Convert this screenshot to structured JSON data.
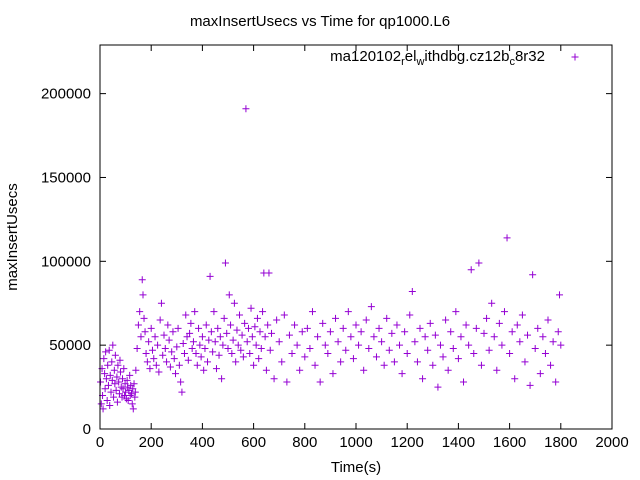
{
  "chart_data": {
    "type": "scatter",
    "title": "maxInsertUsecs vs Time for qp1000.L6",
    "xlabel": "Time(s)",
    "ylabel": "maxInsertUsecs",
    "xlim": [
      0,
      2000
    ],
    "ylim": [
      0,
      229000
    ],
    "xticks": [
      0,
      200,
      400,
      600,
      800,
      1000,
      1200,
      1400,
      1600,
      1800,
      2000
    ],
    "yticks": [
      0,
      50000,
      100000,
      150000,
      200000
    ],
    "grid": false,
    "legend": {
      "position": "top-right",
      "entries": [
        {
          "label": "ma120102_rel_withdbg.cz12b_c8r32",
          "label_parts": [
            "ma120102",
            "r",
            "el",
            "w",
            "ithdbg.cz12b",
            "c",
            "8r32"
          ],
          "marker": "+",
          "color": "#9400d3"
        }
      ]
    },
    "series": [
      {
        "name": "ma120102_rel_withdbg.cz12b_c8r32",
        "color": "#9400d3",
        "points": [
          [
            2,
            28000
          ],
          [
            5,
            15000
          ],
          [
            8,
            36000
          ],
          [
            10,
            20000
          ],
          [
            12,
            12000
          ],
          [
            15,
            42000
          ],
          [
            18,
            33000
          ],
          [
            20,
            24000
          ],
          [
            22,
            46000
          ],
          [
            25,
            30000
          ],
          [
            28,
            17000
          ],
          [
            30,
            38000
          ],
          [
            33,
            26000
          ],
          [
            36,
            47000
          ],
          [
            38,
            14000
          ],
          [
            40,
            32000
          ],
          [
            43,
            22000
          ],
          [
            46,
            40000
          ],
          [
            48,
            29000
          ],
          [
            50,
            50000
          ],
          [
            53,
            19000
          ],
          [
            56,
            35000
          ],
          [
            58,
            27000
          ],
          [
            60,
            44000
          ],
          [
            63,
            23000
          ],
          [
            66,
            31000
          ],
          [
            68,
            16000
          ],
          [
            70,
            38000
          ],
          [
            73,
            28000
          ],
          [
            76,
            21000
          ],
          [
            78,
            41000
          ],
          [
            80,
            34000
          ],
          [
            83,
            25000
          ],
          [
            86,
            19000
          ],
          [
            88,
            30000
          ],
          [
            90,
            24000
          ],
          [
            93,
            36000
          ],
          [
            96,
            20000
          ],
          [
            98,
            27000
          ],
          [
            100,
            22000
          ],
          [
            103,
            18000
          ],
          [
            106,
            29000
          ],
          [
            108,
            25000
          ],
          [
            110,
            17000
          ],
          [
            113,
            23000
          ],
          [
            116,
            32000
          ],
          [
            118,
            20000
          ],
          [
            120,
            26000
          ],
          [
            123,
            21000
          ],
          [
            126,
            15000
          ],
          [
            128,
            24000
          ],
          [
            130,
            12000
          ],
          [
            133,
            27000
          ],
          [
            136,
            19000
          ],
          [
            138,
            22000
          ],
          [
            140,
            35000
          ],
          [
            145,
            48000
          ],
          [
            150,
            62000
          ],
          [
            155,
            70000
          ],
          [
            160,
            55000
          ],
          [
            165,
            89000
          ],
          [
            168,
            80000
          ],
          [
            172,
            66000
          ],
          [
            176,
            58000
          ],
          [
            180,
            45000
          ],
          [
            185,
            40000
          ],
          [
            190,
            52000
          ],
          [
            195,
            36000
          ],
          [
            200,
            60000
          ],
          [
            205,
            47000
          ],
          [
            210,
            42000
          ],
          [
            215,
            55000
          ],
          [
            220,
            38000
          ],
          [
            225,
            50000
          ],
          [
            230,
            34000
          ],
          [
            235,
            65000
          ],
          [
            240,
            75000
          ],
          [
            245,
            44000
          ],
          [
            250,
            56000
          ],
          [
            255,
            48000
          ],
          [
            260,
            40000
          ],
          [
            265,
            62000
          ],
          [
            270,
            53000
          ],
          [
            275,
            37000
          ],
          [
            280,
            46000
          ],
          [
            285,
            58000
          ],
          [
            290,
            42000
          ],
          [
            295,
            33000
          ],
          [
            300,
            49000
          ],
          [
            305,
            60000
          ],
          [
            310,
            38000
          ],
          [
            315,
            28000
          ],
          [
            320,
            22000
          ],
          [
            325,
            51000
          ],
          [
            330,
            45000
          ],
          [
            335,
            68000
          ],
          [
            340,
            55000
          ],
          [
            345,
            41000
          ],
          [
            350,
            57000
          ],
          [
            355,
            63000
          ],
          [
            360,
            48000
          ],
          [
            365,
            52000
          ],
          [
            370,
            70000
          ],
          [
            375,
            45000
          ],
          [
            380,
            38000
          ],
          [
            385,
            60000
          ],
          [
            390,
            50000
          ],
          [
            395,
            43000
          ],
          [
            400,
            55000
          ],
          [
            405,
            35000
          ],
          [
            410,
            48000
          ],
          [
            415,
            62000
          ],
          [
            420,
            40000
          ],
          [
            425,
            53000
          ],
          [
            430,
            91000
          ],
          [
            435,
            58000
          ],
          [
            440,
            46000
          ],
          [
            445,
            70000
          ],
          [
            450,
            52000
          ],
          [
            455,
            36000
          ],
          [
            460,
            60000
          ],
          [
            465,
            44000
          ],
          [
            470,
            55000
          ],
          [
            475,
            30000
          ],
          [
            480,
            50000
          ],
          [
            485,
            66000
          ],
          [
            490,
            99000
          ],
          [
            495,
            57000
          ],
          [
            500,
            48000
          ],
          [
            505,
            80000
          ],
          [
            510,
            62000
          ],
          [
            515,
            45000
          ],
          [
            520,
            53000
          ],
          [
            525,
            75000
          ],
          [
            530,
            40000
          ],
          [
            535,
            59000
          ],
          [
            540,
            50000
          ],
          [
            545,
            68000
          ],
          [
            550,
            47000
          ],
          [
            555,
            56000
          ],
          [
            560,
            43000
          ],
          [
            565,
            63000
          ],
          [
            570,
            191000
          ],
          [
            575,
            52000
          ],
          [
            580,
            60000
          ],
          [
            585,
            45000
          ],
          [
            590,
            72000
          ],
          [
            595,
            55000
          ],
          [
            600,
            38000
          ],
          [
            605,
            61000
          ],
          [
            610,
            50000
          ],
          [
            615,
            66000
          ],
          [
            620,
            42000
          ],
          [
            625,
            58000
          ],
          [
            630,
            48000
          ],
          [
            635,
            70000
          ],
          [
            640,
            93000
          ],
          [
            645,
            55000
          ],
          [
            650,
            35000
          ],
          [
            655,
            62000
          ],
          [
            660,
            93000
          ],
          [
            665,
            47000
          ],
          [
            670,
            57000
          ],
          [
            680,
            30000
          ],
          [
            690,
            65000
          ],
          [
            700,
            52000
          ],
          [
            710,
            40000
          ],
          [
            720,
            68000
          ],
          [
            730,
            28000
          ],
          [
            740,
            56000
          ],
          [
            750,
            45000
          ],
          [
            760,
            62000
          ],
          [
            770,
            50000
          ],
          [
            780,
            35000
          ],
          [
            790,
            58000
          ],
          [
            800,
            43000
          ],
          [
            810,
            60000
          ],
          [
            820,
            48000
          ],
          [
            830,
            70000
          ],
          [
            840,
            38000
          ],
          [
            850,
            55000
          ],
          [
            860,
            28000
          ],
          [
            870,
            63000
          ],
          [
            880,
            50000
          ],
          [
            890,
            45000
          ],
          [
            900,
            58000
          ],
          [
            910,
            33000
          ],
          [
            920,
            66000
          ],
          [
            930,
            52000
          ],
          [
            940,
            40000
          ],
          [
            950,
            60000
          ],
          [
            960,
            47000
          ],
          [
            970,
            70000
          ],
          [
            980,
            55000
          ],
          [
            990,
            42000
          ],
          [
            1000,
            62000
          ],
          [
            1010,
            50000
          ],
          [
            1020,
            58000
          ],
          [
            1030,
            35000
          ],
          [
            1040,
            65000
          ],
          [
            1050,
            48000
          ],
          [
            1060,
            73000
          ],
          [
            1070,
            55000
          ],
          [
            1080,
            43000
          ],
          [
            1090,
            60000
          ],
          [
            1100,
            52000
          ],
          [
            1110,
            38000
          ],
          [
            1120,
            66000
          ],
          [
            1130,
            47000
          ],
          [
            1140,
            57000
          ],
          [
            1150,
            40000
          ],
          [
            1160,
            62000
          ],
          [
            1170,
            50000
          ],
          [
            1180,
            33000
          ],
          [
            1190,
            58000
          ],
          [
            1200,
            45000
          ],
          [
            1210,
            68000
          ],
          [
            1220,
            82000
          ],
          [
            1230,
            52000
          ],
          [
            1240,
            40000
          ],
          [
            1250,
            60000
          ],
          [
            1260,
            30000
          ],
          [
            1270,
            55000
          ],
          [
            1280,
            47000
          ],
          [
            1290,
            63000
          ],
          [
            1300,
            38000
          ],
          [
            1310,
            56000
          ],
          [
            1320,
            25000
          ],
          [
            1330,
            50000
          ],
          [
            1340,
            43000
          ],
          [
            1350,
            65000
          ],
          [
            1360,
            35000
          ],
          [
            1370,
            58000
          ],
          [
            1380,
            48000
          ],
          [
            1390,
            70000
          ],
          [
            1400,
            42000
          ],
          [
            1410,
            55000
          ],
          [
            1420,
            28000
          ],
          [
            1430,
            62000
          ],
          [
            1440,
            50000
          ],
          [
            1450,
            95000
          ],
          [
            1460,
            45000
          ],
          [
            1470,
            60000
          ],
          [
            1480,
            99000
          ],
          [
            1490,
            38000
          ],
          [
            1500,
            57000
          ],
          [
            1510,
            66000
          ],
          [
            1520,
            47000
          ],
          [
            1530,
            75000
          ],
          [
            1540,
            55000
          ],
          [
            1550,
            35000
          ],
          [
            1560,
            63000
          ],
          [
            1570,
            50000
          ],
          [
            1580,
            70000
          ],
          [
            1590,
            114000
          ],
          [
            1600,
            45000
          ],
          [
            1610,
            58000
          ],
          [
            1620,
            30000
          ],
          [
            1630,
            62000
          ],
          [
            1640,
            52000
          ],
          [
            1650,
            68000
          ],
          [
            1660,
            40000
          ],
          [
            1670,
            56000
          ],
          [
            1680,
            26000
          ],
          [
            1690,
            92000
          ],
          [
            1700,
            48000
          ],
          [
            1710,
            60000
          ],
          [
            1720,
            33000
          ],
          [
            1730,
            55000
          ],
          [
            1740,
            45000
          ],
          [
            1750,
            65000
          ],
          [
            1760,
            38000
          ],
          [
            1770,
            52000
          ],
          [
            1780,
            28000
          ],
          [
            1790,
            58000
          ],
          [
            1795,
            80000
          ],
          [
            1800,
            50000
          ]
        ]
      }
    ]
  }
}
